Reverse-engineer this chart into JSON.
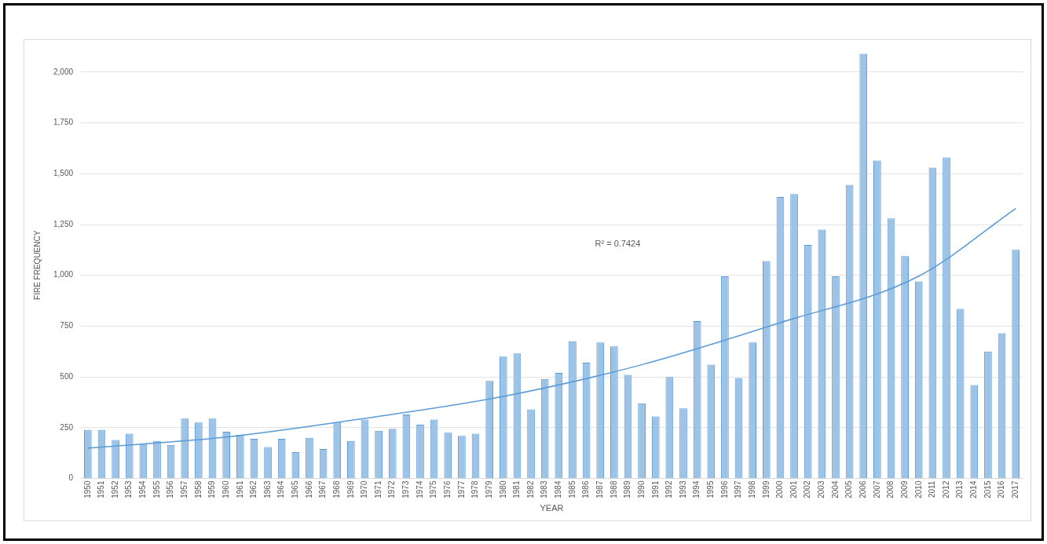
{
  "chart_data": {
    "type": "bar",
    "xlabel": "YEAR",
    "ylabel": "FIRE FREQUENCY",
    "categories": [
      "1950",
      "1951",
      "1952",
      "1953",
      "1954",
      "1955",
      "1956",
      "1957",
      "1958",
      "1959",
      "1960",
      "1961",
      "1962",
      "1963",
      "1964",
      "1965",
      "1966",
      "1967",
      "1968",
      "1969",
      "1970",
      "1971",
      "1972",
      "1973",
      "1974",
      "1975",
      "1976",
      "1977",
      "1978",
      "1979",
      "1980",
      "1981",
      "1982",
      "1983",
      "1984",
      "1985",
      "1986",
      "1987",
      "1988",
      "1989",
      "1990",
      "1991",
      "1992",
      "1993",
      "1994",
      "1995",
      "1996",
      "1997",
      "1998",
      "1999",
      "2000",
      "2001",
      "2002",
      "2003",
      "2004",
      "2005",
      "2006",
      "2007",
      "2008",
      "2009",
      "2010",
      "2011",
      "2012",
      "2013",
      "2014",
      "2015",
      "2016",
      "2017"
    ],
    "series": [
      {
        "color": "#9dc3e6",
        "values": [
          240,
          240,
          190,
          220,
          170,
          185,
          165,
          295,
          275,
          295,
          230,
          215,
          195,
          155,
          195,
          130,
          200,
          145,
          275,
          185,
          290,
          235,
          245,
          315,
          265,
          290,
          225,
          210,
          220,
          480,
          600,
          615,
          340,
          490,
          520,
          675,
          570,
          670,
          650,
          510,
          370,
          305,
          500,
          345,
          775,
          560,
          995,
          495,
          670,
          1070,
          1385,
          1400,
          1150,
          1225,
          995,
          1445,
          2090,
          1565,
          1280,
          1095,
          970,
          1530,
          1580,
          835,
          460,
          625,
          715,
          1125
        ]
      },
      {
        "type": "line",
        "color": "#5b9bd5",
        "values": [
          150,
          null,
          null,
          null,
          null,
          null,
          null,
          null,
          null,
          null,
          204,
          null,
          null,
          null,
          null,
          null,
          null,
          null,
          null,
          null,
          296,
          null,
          null,
          null,
          null,
          null,
          null,
          null,
          null,
          null,
          404,
          null,
          null,
          null,
          null,
          null,
          null,
          null,
          null,
          null,
          560,
          null,
          null,
          null,
          null,
          null,
          null,
          null,
          null,
          null,
          767,
          null,
          null,
          null,
          null,
          null,
          null,
          null,
          null,
          null,
          996,
          null,
          null,
          null,
          null,
          null,
          null,
          1329
        ]
      }
    ],
    "annotations": [
      "R² = 0.7424"
    ],
    "ylim": [
      0,
      2100
    ],
    "yticks": [
      0,
      {
        "value": 250,
        "label": "250"
      },
      {
        "value": 500,
        "label": "500"
      },
      {
        "value": 750,
        "label": "750"
      },
      {
        "value": 1000,
        "label": "1,000"
      },
      {
        "value": 1250,
        "label": "1,250"
      },
      {
        "value": 1500,
        "label": "1,500"
      },
      {
        "value": 1750,
        "label": "1,750"
      },
      {
        "value": 2000,
        "label": "2,000"
      }
    ],
    "grid": "y",
    "legend": false,
    "marker": "none",
    "line_style": "solid"
  }
}
